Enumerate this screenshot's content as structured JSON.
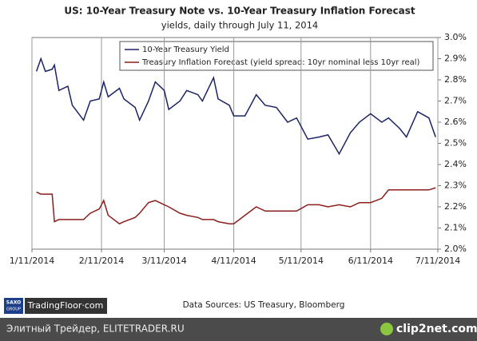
{
  "chart_data": {
    "type": "line",
    "title": "US: 10-Year Treasury Note vs. 10-Year Treasury Inflation Forecast",
    "subtitle": "yields, daily through July 11, 2014",
    "source": "Data Sources: US Treasury, Bloomberg",
    "x": [
      "2014-01-13",
      "2014-01-15",
      "2014-01-17",
      "2014-01-20",
      "2014-01-21",
      "2014-01-23",
      "2014-01-27",
      "2014-01-29",
      "2014-02-03",
      "2014-02-06",
      "2014-02-10",
      "2014-02-12",
      "2014-02-14",
      "2014-02-19",
      "2014-02-21",
      "2014-02-26",
      "2014-02-28",
      "2014-03-04",
      "2014-03-07",
      "2014-03-11",
      "2014-03-13",
      "2014-03-18",
      "2014-03-21",
      "2014-03-26",
      "2014-03-28",
      "2014-04-02",
      "2014-04-04",
      "2014-04-09",
      "2014-04-11",
      "2014-04-16",
      "2014-04-21",
      "2014-04-25",
      "2014-04-30",
      "2014-05-05",
      "2014-05-09",
      "2014-05-14",
      "2014-05-19",
      "2014-05-23",
      "2014-05-28",
      "2014-06-02",
      "2014-06-06",
      "2014-06-11",
      "2014-06-16",
      "2014-06-19",
      "2014-06-24",
      "2014-06-27",
      "2014-07-02",
      "2014-07-07",
      "2014-07-10"
    ],
    "series": [
      {
        "name": "10-Year Treasury Yield",
        "color": "#1c2463",
        "values": [
          2.84,
          2.9,
          2.84,
          2.85,
          2.87,
          2.75,
          2.77,
          2.68,
          2.61,
          2.7,
          2.71,
          2.79,
          2.72,
          2.76,
          2.71,
          2.67,
          2.61,
          2.7,
          2.79,
          2.75,
          2.66,
          2.7,
          2.75,
          2.73,
          2.7,
          2.81,
          2.71,
          2.68,
          2.63,
          2.63,
          2.73,
          2.68,
          2.67,
          2.6,
          2.62,
          2.52,
          2.53,
          2.54,
          2.45,
          2.55,
          2.6,
          2.64,
          2.6,
          2.62,
          2.57,
          2.53,
          2.65,
          2.62,
          2.53
        ]
      },
      {
        "name": "Treasury Inflation Forecast (yield spread: 10yr nominal less 10yr real)",
        "color": "#8a1f1c",
        "values": [
          2.27,
          2.26,
          2.26,
          2.26,
          2.13,
          2.14,
          2.14,
          2.14,
          2.14,
          2.17,
          2.19,
          2.23,
          2.16,
          2.12,
          2.13,
          2.15,
          2.17,
          2.22,
          2.23,
          2.21,
          2.2,
          2.17,
          2.16,
          2.15,
          2.14,
          2.14,
          2.13,
          2.12,
          2.12,
          2.16,
          2.2,
          2.18,
          2.18,
          2.18,
          2.18,
          2.21,
          2.21,
          2.2,
          2.21,
          2.2,
          2.22,
          2.22,
          2.24,
          2.28,
          2.28,
          2.28,
          2.28,
          2.28,
          2.29
        ]
      }
    ],
    "xlim": [
      "2014-01-11",
      "2014-07-11"
    ],
    "xticks": [
      {
        "value": "2014-01-11",
        "label": "1/11/2014"
      },
      {
        "value": "2014-02-11",
        "label": "2/11/2014"
      },
      {
        "value": "2014-03-11",
        "label": "3/11/2014"
      },
      {
        "value": "2014-04-11",
        "label": "4/11/2014"
      },
      {
        "value": "2014-05-11",
        "label": "5/11/2014"
      },
      {
        "value": "2014-06-11",
        "label": "6/11/2014"
      },
      {
        "value": "2014-07-11",
        "label": "7/11/2014"
      }
    ],
    "ylim": [
      2.0,
      3.0
    ],
    "yticks": [
      {
        "value": 2.0,
        "label": "2.0%"
      },
      {
        "value": 2.1,
        "label": "2.1%"
      },
      {
        "value": 2.2,
        "label": "2.2%"
      },
      {
        "value": 2.3,
        "label": "2.3%"
      },
      {
        "value": 2.4,
        "label": "2.4%"
      },
      {
        "value": 2.5,
        "label": "2.5%"
      },
      {
        "value": 2.6,
        "label": "2.6%"
      },
      {
        "value": 2.7,
        "label": "2.7%"
      },
      {
        "value": 2.8,
        "label": "2.8%"
      },
      {
        "value": 2.9,
        "label": "2.9%"
      },
      {
        "value": 3.0,
        "label": "3.0%"
      }
    ],
    "grid": "x",
    "legend": "top"
  },
  "branding": {
    "logo_top": "SAXO",
    "logo_bottom": "GROUP",
    "site": "TradingFloor·com"
  },
  "footer": {
    "left": "Элитный Трейдер, ELITETRADER.RU",
    "right": "clip2net.com"
  }
}
